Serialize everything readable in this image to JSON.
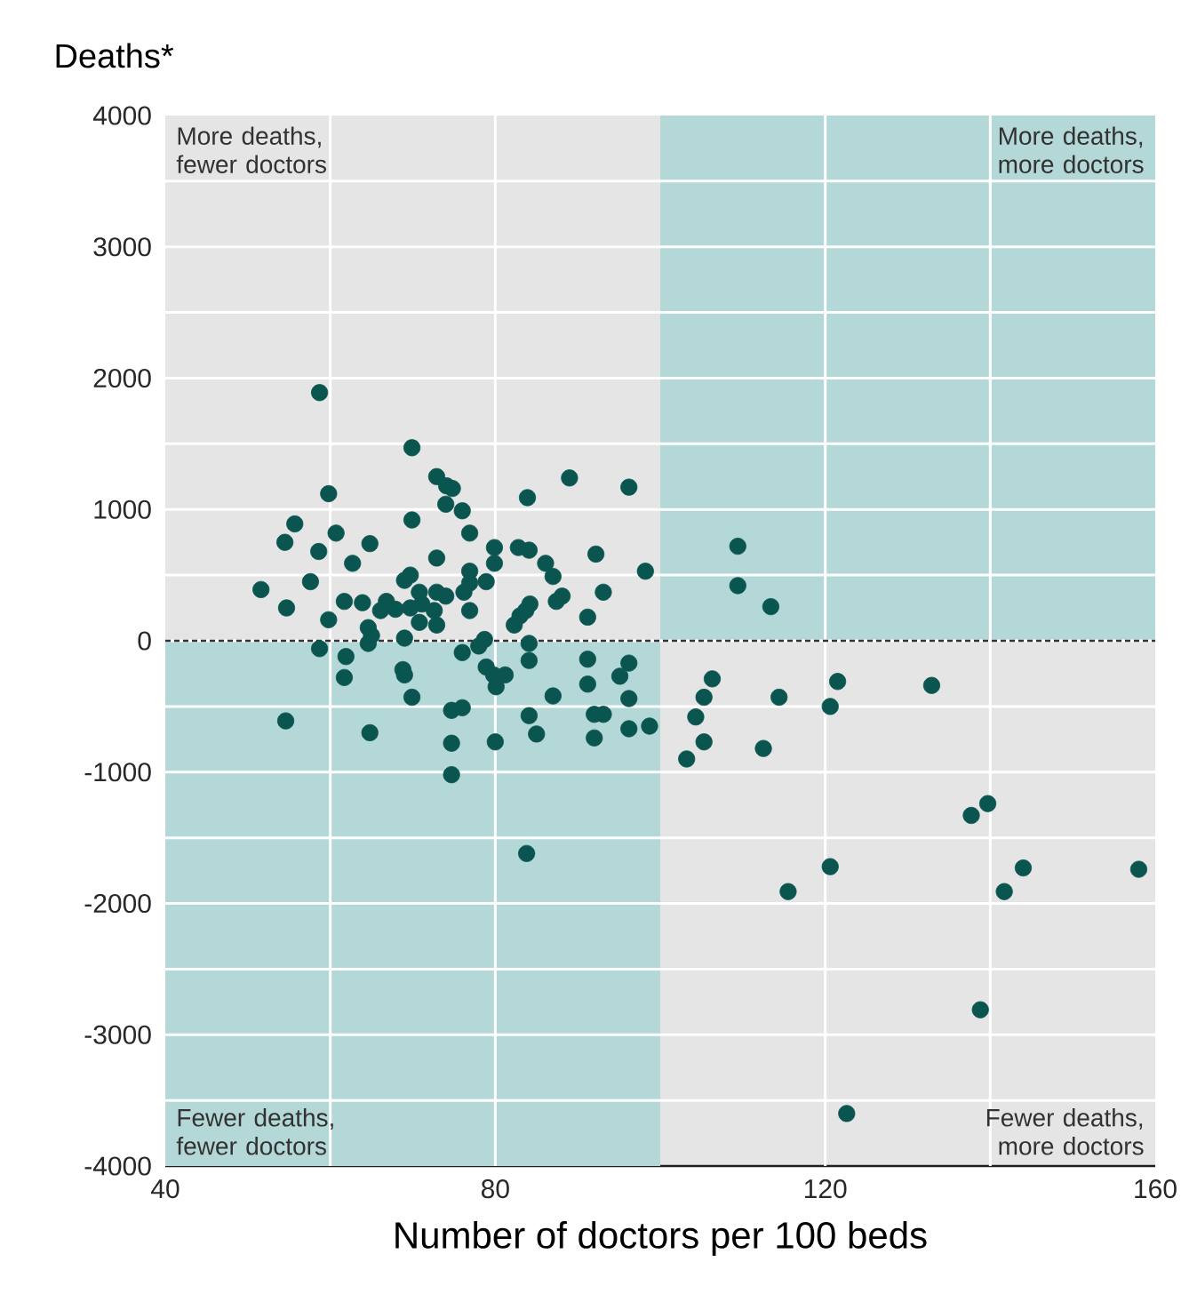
{
  "chart_data": {
    "type": "scatter",
    "ylabel": "Deaths*",
    "xlabel": "Number of doctors per 100 beds",
    "annotations": [
      "More deaths, fewer doctors",
      "More deaths, more doctors",
      "Fewer deaths, fewer doctors",
      "Fewer deaths, more doctors"
    ],
    "xlim": [
      40,
      160
    ],
    "xticks": [
      40,
      {
        "value": 60,
        "label": null
      },
      80,
      120,
      {
        "value": 140,
        "label": null
      },
      160
    ],
    "ylim": [
      -4000,
      4000
    ],
    "yticks": [
      -4000,
      {
        "value": -3500,
        "label": null
      },
      -3000,
      {
        "value": -2500,
        "label": null
      },
      -2000,
      {
        "value": -1500,
        "label": null
      },
      -1000,
      {
        "value": -500,
        "label": null
      },
      0,
      {
        "value": 500,
        "label": null
      },
      1000,
      {
        "value": 1500,
        "label": null
      },
      2000,
      {
        "value": 2500,
        "label": null
      },
      3000,
      {
        "value": 3500,
        "label": null
      },
      4000
    ],
    "grid": true,
    "ref_lines": [
      {
        "axis": "y",
        "value": 0,
        "color": "#333333",
        "line_style": "dashed"
      }
    ],
    "bands": [
      {
        "axis": "x",
        "from": 100,
        "to": 160,
        "color": "#b3d8d7"
      },
      {
        "axis": "x",
        "from": 40,
        "to": 100,
        "color": "#b3d8d7"
      }
    ],
    "series": [
      {
        "color": "#0b5551",
        "x": [
          58.7,
          69.9,
          59.8,
          69.9,
          55.7,
          54.5,
          60.7,
          58.6,
          64.8,
          62.7,
          72.9,
          51.6,
          57.6,
          69.0,
          69.7,
          54.7,
          61.7,
          63.9,
          59.8,
          66.1,
          67.9,
          69.7,
          71.1,
          72.6,
          64.6,
          65.0,
          64.6,
          72.9,
          70.8,
          69.0,
          58.7,
          61.9,
          61.7,
          68.8,
          69.0,
          69.9,
          54.6,
          64.8,
          72.9,
          74.1,
          74.8,
          74.0,
          76.0,
          76.9,
          89.0,
          96.2,
          83.9,
          79.9,
          79.9,
          82.8,
          84.1,
          86.1,
          87.0,
          92.2,
          98.2,
          76.9,
          78.9,
          76.9,
          70.8,
          72.9,
          74.0,
          76.2,
          84.2,
          88.1,
          93.1,
          76.9,
          82.3,
          83.0,
          83.7,
          87.4,
          91.2,
          78.0,
          78.7,
          76.0,
          84.1,
          84.1,
          78.9,
          79.8,
          81.2,
          80.1,
          91.2,
          96.2,
          95.1,
          91.2,
          87.0,
          96.2,
          74.7,
          76.0,
          84.1,
          92.0,
          93.1,
          98.7,
          96.2,
          92.0,
          85.0,
          80.0,
          74.7,
          74.7,
          103.2,
          83.8,
          109.4,
          109.4,
          113.4,
          106.3,
          105.3,
          104.3,
          105.3,
          114.4,
          112.5,
          121.5,
          120.6,
          132.9,
          137.7,
          139.7,
          120.6,
          115.5,
          144.0,
          141.7,
          158.0,
          138.8,
          122.6,
          66.8
        ],
        "values": [
          1890,
          1470,
          1120,
          920,
          890,
          750,
          820,
          680,
          740,
          590,
          630,
          390,
          450,
          460,
          500,
          250,
          300,
          290,
          160,
          230,
          240,
          250,
          280,
          230,
          100,
          40,
          -20,
          120,
          140,
          20,
          -60,
          -120,
          -280,
          -220,
          -260,
          -430,
          -610,
          -700,
          1250,
          1180,
          1160,
          1040,
          990,
          820,
          1240,
          1170,
          1090,
          710,
          590,
          710,
          690,
          590,
          490,
          660,
          530,
          530,
          450,
          440,
          370,
          370,
          340,
          370,
          280,
          340,
          370,
          230,
          120,
          190,
          230,
          300,
          180,
          -40,
          10,
          -90,
          -20,
          -150,
          -200,
          -260,
          -260,
          -350,
          -140,
          -170,
          -270,
          -330,
          -420,
          -440,
          -530,
          -510,
          -570,
          -560,
          -560,
          -650,
          -670,
          -740,
          -710,
          -770,
          -780,
          -1020,
          -900,
          -1620,
          720,
          420,
          260,
          -290,
          -430,
          -580,
          -770,
          -430,
          -820,
          -310,
          -500,
          -340,
          -1330,
          -1240,
          -1720,
          -1910,
          -1730,
          -1910,
          -1740,
          -2810,
          -3600,
          300
        ]
      }
    ]
  }
}
